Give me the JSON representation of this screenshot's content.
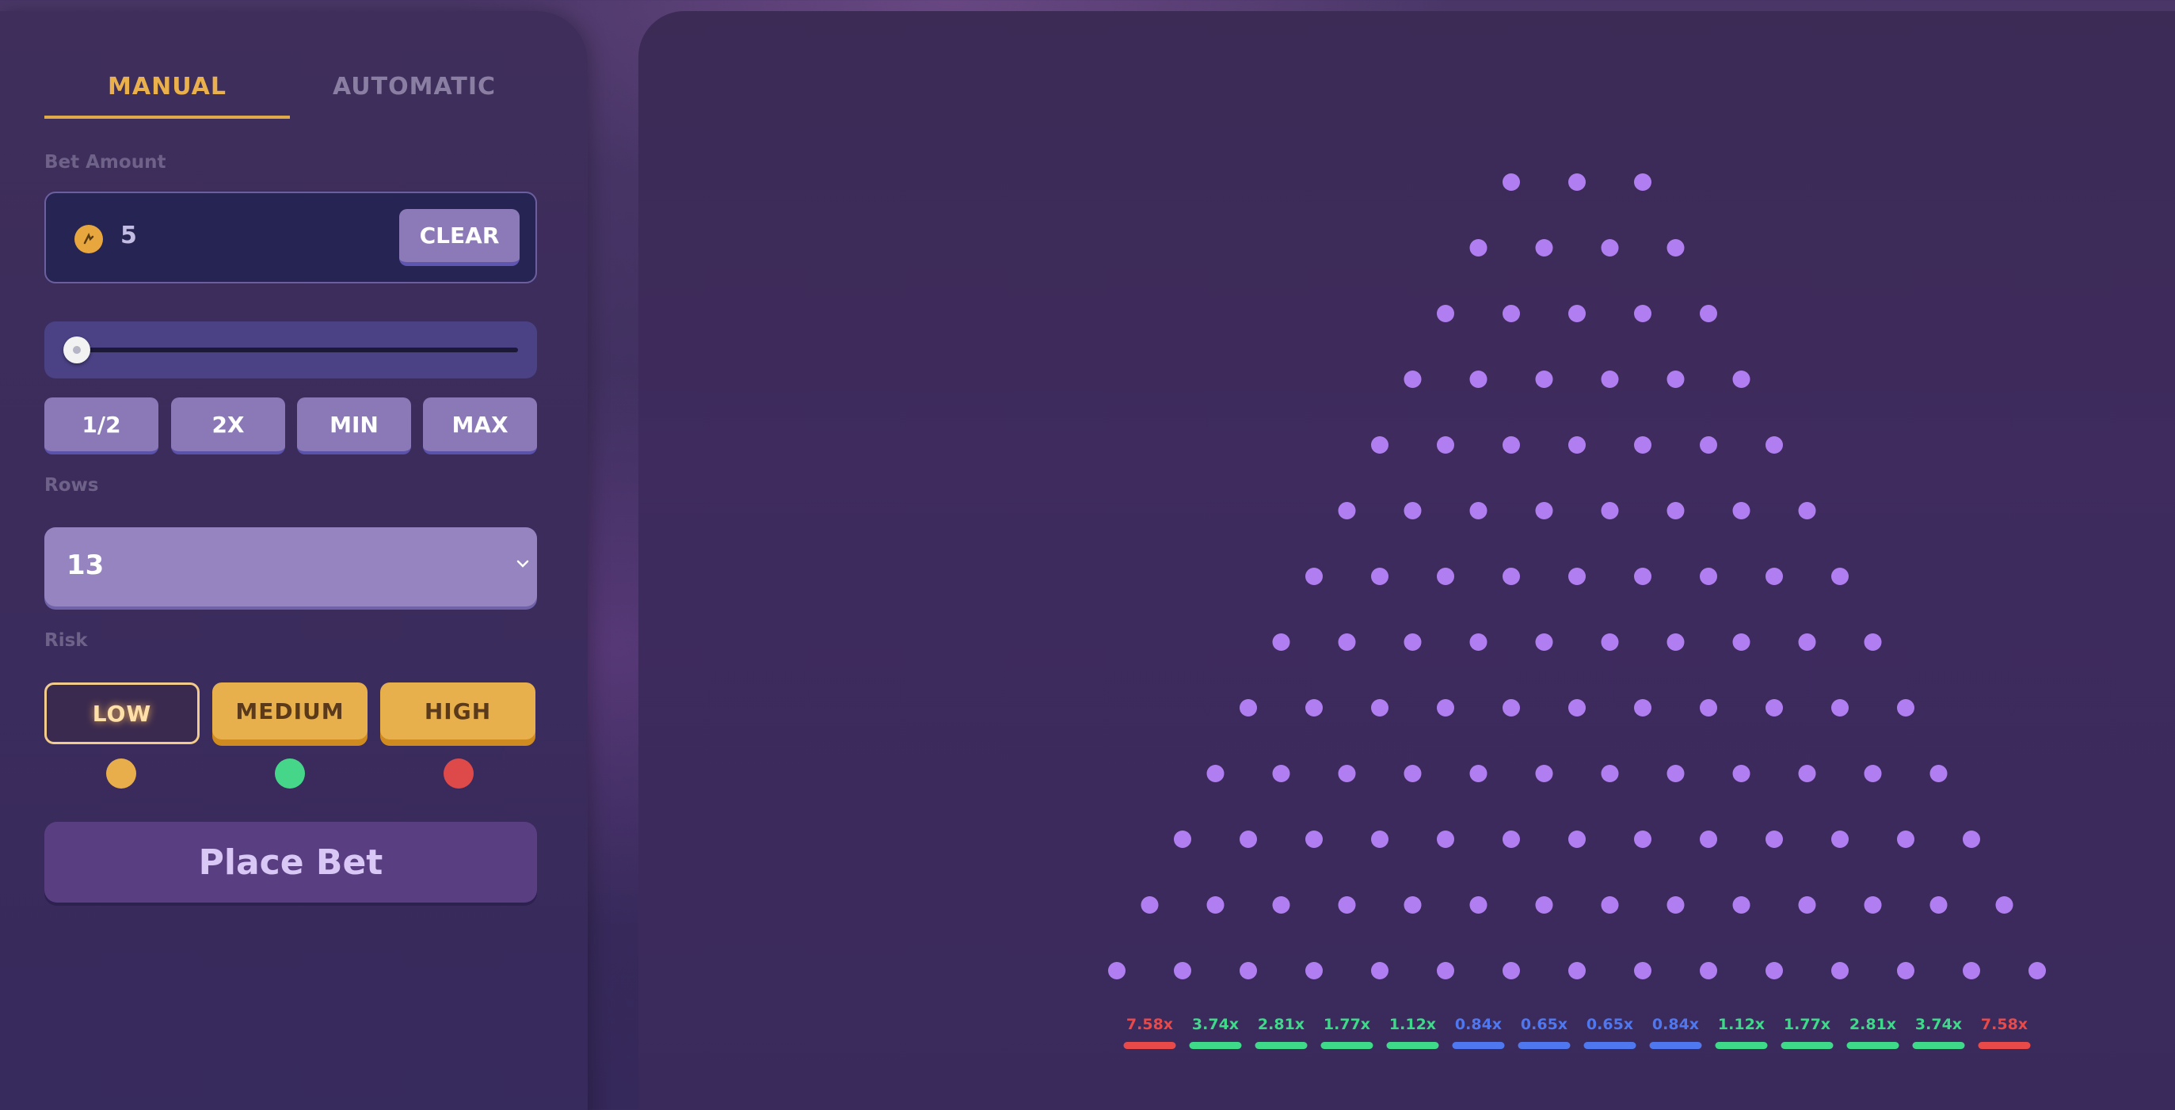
{
  "tabs": {
    "manual": "MANUAL",
    "automatic": "AUTOMATIC"
  },
  "bet": {
    "label": "Bet Amount",
    "coin_icon": "coin-icon",
    "value": "5",
    "clear_label": "CLEAR",
    "slider_fraction": 0
  },
  "quick_buttons": [
    "1/2",
    "2X",
    "MIN",
    "MAX"
  ],
  "rows": {
    "label": "Rows",
    "selected": "13"
  },
  "risk": {
    "label": "Risk",
    "options": [
      "LOW",
      "MEDIUM",
      "HIGH"
    ],
    "selected": "LOW",
    "indicator_colors": [
      "#e8ae4c",
      "#46d68a",
      "#de4a4a"
    ]
  },
  "place_bet_label": "Place Bet",
  "board": {
    "rows": 13,
    "peg_color": "#b07ef0",
    "multipliers": [
      {
        "label": "7.58x",
        "color": "#e84a4a"
      },
      {
        "label": "3.74x",
        "color": "#3fd98a"
      },
      {
        "label": "2.81x",
        "color": "#3fd98a"
      },
      {
        "label": "1.77x",
        "color": "#3fd98a"
      },
      {
        "label": "1.12x",
        "color": "#3fd98a"
      },
      {
        "label": "0.84x",
        "color": "#4f78f0"
      },
      {
        "label": "0.65x",
        "color": "#4f78f0"
      },
      {
        "label": "0.65x",
        "color": "#4f78f0"
      },
      {
        "label": "0.84x",
        "color": "#4f78f0"
      },
      {
        "label": "1.12x",
        "color": "#3fd98a"
      },
      {
        "label": "1.77x",
        "color": "#3fd98a"
      },
      {
        "label": "2.81x",
        "color": "#3fd98a"
      },
      {
        "label": "3.74x",
        "color": "#3fd98a"
      },
      {
        "label": "7.58x",
        "color": "#e84a4a"
      }
    ]
  }
}
